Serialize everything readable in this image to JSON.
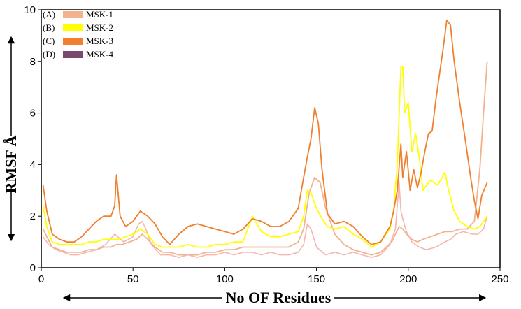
{
  "chart_data": {
    "type": "line",
    "title": "",
    "xlabel": "No OF Residues",
    "ylabel": "RMSF Å",
    "xlim": [
      0,
      250
    ],
    "ylim": [
      0,
      10
    ],
    "xticks": [
      "0",
      "50",
      "100",
      "150",
      "200",
      "250"
    ],
    "yticks": [
      "0",
      "2",
      "4",
      "6",
      "8",
      "10"
    ],
    "grid": false,
    "legend_position": "top-left",
    "series": [
      {
        "name": "MSK-1",
        "tag": "(A)",
        "color": "#f2b38c",
        "x": [
          1,
          3,
          6,
          10,
          14,
          18,
          22,
          26,
          30,
          34,
          38,
          41,
          44,
          48,
          52,
          55,
          58,
          62,
          66,
          70,
          75,
          80,
          85,
          90,
          95,
          100,
          105,
          110,
          115,
          120,
          125,
          130,
          135,
          140,
          143,
          146,
          149,
          152,
          155,
          160,
          165,
          170,
          175,
          180,
          185,
          188,
          191,
          193,
          195,
          197,
          199,
          202,
          205,
          208,
          212,
          216,
          220,
          224,
          228,
          232,
          236,
          239,
          241,
          243
        ],
        "y": [
          1.5,
          1.2,
          0.8,
          0.7,
          0.6,
          0.6,
          0.6,
          0.7,
          0.7,
          0.8,
          0.8,
          0.9,
          0.9,
          1.0,
          1.1,
          1.3,
          1.1,
          0.8,
          0.6,
          0.6,
          0.5,
          0.5,
          0.5,
          0.6,
          0.6,
          0.7,
          0.7,
          0.8,
          0.8,
          0.8,
          0.8,
          0.8,
          0.8,
          1.0,
          1.5,
          2.9,
          3.5,
          3.3,
          2.3,
          1.3,
          0.9,
          0.7,
          0.6,
          0.5,
          0.6,
          0.8,
          1.0,
          1.3,
          1.6,
          1.5,
          1.3,
          1.1,
          1.0,
          1.1,
          1.2,
          1.3,
          1.4,
          1.4,
          1.5,
          1.5,
          1.8,
          3.8,
          6.0,
          8.0
        ]
      },
      {
        "name": "MSK-2",
        "tag": "(B)",
        "color": "#ffff00",
        "x": [
          1,
          3,
          6,
          10,
          14,
          18,
          22,
          26,
          30,
          34,
          38,
          42,
          46,
          50,
          54,
          58,
          62,
          66,
          70,
          75,
          80,
          85,
          90,
          95,
          100,
          105,
          110,
          115,
          120,
          125,
          130,
          135,
          140,
          143,
          145,
          147,
          150,
          153,
          156,
          160,
          165,
          170,
          175,
          180,
          185,
          190,
          192,
          194,
          196,
          197,
          198,
          200,
          202,
          204,
          206,
          208,
          212,
          216,
          220,
          222,
          225,
          228,
          232,
          236,
          239,
          241,
          243
        ],
        "y": [
          2.4,
          1.6,
          1.0,
          0.9,
          0.9,
          0.9,
          0.9,
          1.0,
          1.0,
          1.1,
          1.1,
          1.1,
          1.2,
          1.3,
          1.5,
          1.3,
          0.9,
          0.8,
          0.8,
          0.8,
          0.9,
          0.8,
          0.8,
          0.9,
          0.9,
          1.0,
          1.0,
          2.0,
          1.4,
          1.2,
          1.2,
          1.3,
          1.4,
          2.0,
          3.0,
          2.9,
          2.3,
          1.9,
          1.6,
          1.5,
          1.6,
          1.3,
          1.1,
          0.8,
          1.0,
          1.5,
          2.2,
          4.0,
          7.8,
          7.8,
          6.0,
          6.4,
          4.5,
          5.2,
          4.3,
          3.0,
          3.4,
          3.2,
          3.7,
          3.0,
          2.2,
          1.8,
          1.6,
          1.5,
          1.6,
          1.8,
          2.0
        ]
      },
      {
        "name": "MSK-3",
        "tag": "(C)",
        "color": "#f07f2e",
        "x": [
          1,
          3,
          6,
          10,
          14,
          18,
          22,
          26,
          30,
          34,
          38,
          40,
          41,
          43,
          46,
          50,
          54,
          58,
          62,
          66,
          70,
          75,
          80,
          85,
          90,
          95,
          100,
          105,
          110,
          115,
          120,
          125,
          130,
          135,
          140,
          143,
          145,
          147,
          149,
          151,
          153,
          156,
          160,
          165,
          170,
          175,
          180,
          185,
          190,
          192,
          194,
          196,
          197,
          199,
          201,
          203,
          205,
          207,
          209,
          211,
          213,
          215,
          217,
          219,
          221,
          223,
          225,
          228,
          231,
          234,
          236,
          238,
          240,
          243
        ],
        "y": [
          3.2,
          2.2,
          1.3,
          1.1,
          1.0,
          1.0,
          1.2,
          1.5,
          1.8,
          2.0,
          2.0,
          2.4,
          3.6,
          2.0,
          1.6,
          1.8,
          2.2,
          2.0,
          1.7,
          1.2,
          0.9,
          1.3,
          1.6,
          1.7,
          1.6,
          1.5,
          1.4,
          1.3,
          1.5,
          1.9,
          1.8,
          1.6,
          1.6,
          1.8,
          2.3,
          3.5,
          4.3,
          5.0,
          6.2,
          5.6,
          3.8,
          2.1,
          1.7,
          1.8,
          1.6,
          1.2,
          0.9,
          1.0,
          1.6,
          2.2,
          3.0,
          4.8,
          3.5,
          4.5,
          3.0,
          3.8,
          3.1,
          3.7,
          4.5,
          5.2,
          5.3,
          6.5,
          7.5,
          8.5,
          9.6,
          9.4,
          8.0,
          6.4,
          5.0,
          3.5,
          2.6,
          1.9,
          2.8,
          3.3
        ]
      },
      {
        "name": "MSK-4",
        "tag": "(D)",
        "color": "#7a4a6e",
        "x": [],
        "y": []
      }
    ],
    "extra_overlay": {
      "color": "#f5b6b0",
      "x": [
        1,
        4,
        8,
        12,
        16,
        20,
        25,
        30,
        35,
        40,
        45,
        50,
        53,
        55,
        57,
        60,
        65,
        70,
        75,
        80,
        85,
        90,
        95,
        100,
        105,
        110,
        115,
        120,
        125,
        130,
        135,
        140,
        143,
        145,
        147,
        150,
        155,
        160,
        165,
        170,
        175,
        180,
        185,
        190,
        193,
        195,
        196,
        197,
        199,
        202,
        206,
        210,
        215,
        220,
        223,
        226,
        230,
        235,
        238,
        241,
        243
      ],
      "y": [
        1.2,
        0.9,
        0.7,
        0.6,
        0.5,
        0.5,
        0.6,
        0.7,
        0.9,
        1.3,
        1.0,
        1.2,
        1.7,
        1.8,
        1.5,
        0.9,
        0.5,
        0.5,
        0.4,
        0.5,
        0.4,
        0.5,
        0.5,
        0.6,
        0.5,
        0.6,
        0.6,
        0.5,
        0.6,
        0.5,
        0.5,
        0.6,
        0.9,
        1.7,
        1.5,
        0.8,
        0.5,
        0.6,
        0.5,
        0.6,
        0.5,
        0.4,
        0.5,
        0.9,
        1.5,
        3.3,
        2.2,
        1.9,
        1.4,
        1.0,
        0.8,
        0.7,
        0.8,
        1.0,
        1.1,
        1.3,
        1.4,
        1.3,
        1.3,
        1.5,
        2.0
      ]
    }
  }
}
